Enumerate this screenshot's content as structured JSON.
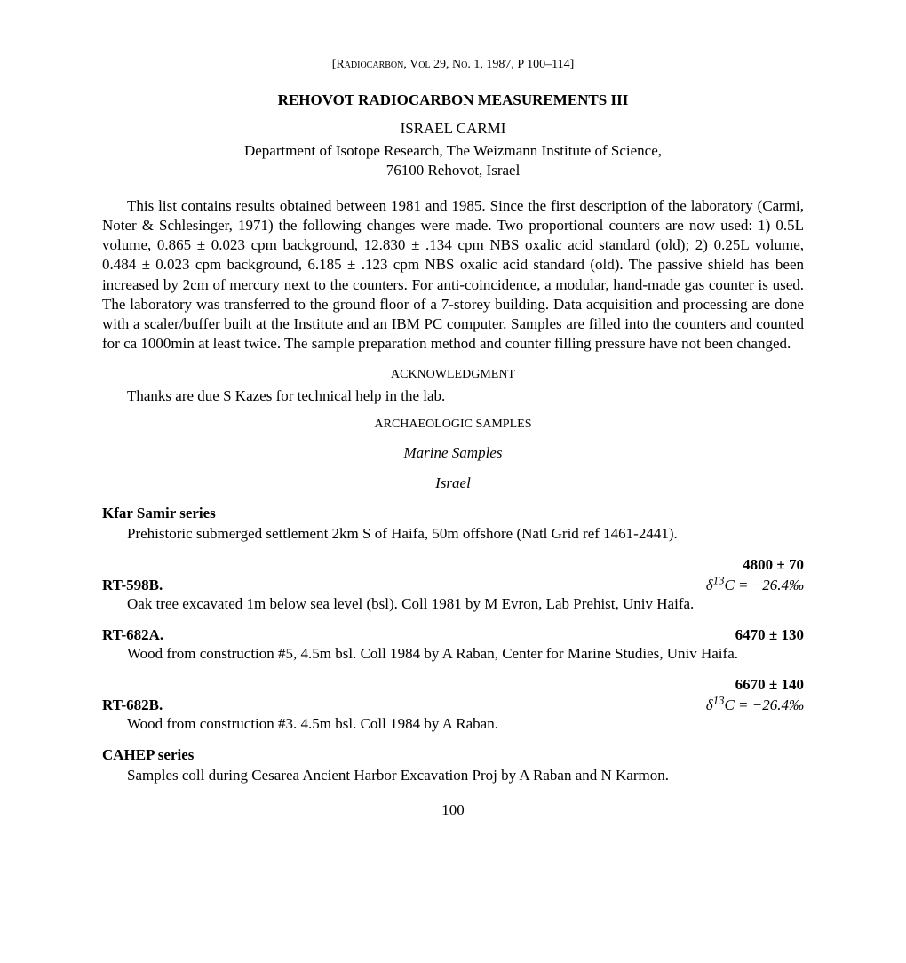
{
  "journal_header": "[Radiocarbon, Vol 29, No. 1, 1987, P 100–114]",
  "title": "REHOVOT RADIOCARBON MEASUREMENTS III",
  "author": "ISRAEL CARMI",
  "affiliation_line1": "Department of Isotope Research, The Weizmann Institute of Science,",
  "affiliation_line2": "76100 Rehovot, Israel",
  "intro_text": "This list contains results obtained between 1981 and 1985. Since the first description of the laboratory (Carmi, Noter & Schlesinger, 1971) the following changes were made. Two proportional counters are now used: 1) 0.5L volume, 0.865 ± 0.023 cpm background, 12.830 ± .134 cpm NBS oxalic acid standard (old); 2) 0.25L volume, 0.484 ± 0.023 cpm background, 6.185 ± .123 cpm NBS oxalic acid standard (old). The passive shield has been increased by 2cm of mercury next to the counters. For anti-coincidence, a modular, hand-made gas counter is used. The laboratory was transferred to the ground floor of a 7-storey building. Data acquisition and processing are done with a scaler/buffer built at the Institute and an IBM PC computer. Samples are filled into the counters and counted for ca 1000min at least twice. The sample preparation method and counter filling pressure have not been changed.",
  "ack_heading": "ACKNOWLEDGMENT",
  "ack_text": "Thanks are due S Kazes for technical help in the lab.",
  "section_heading": "ARCHAEOLOGIC SAMPLES",
  "subsection": "Marine Samples",
  "subsubsection": "Israel",
  "series1": {
    "title": "Kfar Samir series",
    "desc": "Prehistoric submerged settlement 2km S of Haifa, 50m offshore (Natl Grid ref 1461-2441).",
    "samples": [
      {
        "id": "RT-598B.",
        "age": "4800 ± 70",
        "delta": "δ¹³C = −26.4‰",
        "desc": "Oak tree excavated 1m below sea level (bsl). Coll 1981 by M Evron, Lab Prehist, Univ Haifa."
      },
      {
        "id": "RT-682A.",
        "age": "6470 ± 130",
        "delta": "",
        "desc": "Wood from construction #5, 4.5m bsl. Coll 1984 by A Raban, Center for Marine Studies, Univ Haifa."
      },
      {
        "id": "RT-682B.",
        "age": "6670 ± 140",
        "delta": "δ¹³C = −26.4‰",
        "desc": "Wood from construction #3. 4.5m bsl. Coll 1984 by A Raban."
      }
    ]
  },
  "series2": {
    "title": "CAHEP series",
    "desc": "Samples coll during Cesarea Ancient Harbor Excavation Proj by A Raban and N Karmon."
  },
  "page_number": "100"
}
